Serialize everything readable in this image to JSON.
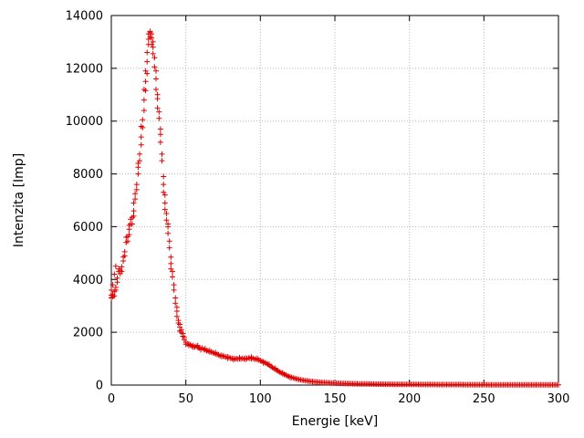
{
  "chart_data": {
    "type": "scatter",
    "title": "",
    "xlabel": "Energie [keV]",
    "ylabel": "Intenzita [Imp]",
    "xlim": [
      0,
      300
    ],
    "ylim": [
      0,
      14000
    ],
    "x_ticks": [
      0,
      50,
      100,
      150,
      200,
      250,
      300
    ],
    "y_ticks": [
      0,
      2000,
      4000,
      6000,
      8000,
      10000,
      12000,
      14000
    ],
    "grid": true,
    "legend": "none",
    "marker": "plus",
    "marker_color": "#e00000",
    "x_start": 0,
    "x_step": 1,
    "values": [
      3300,
      3450,
      3380,
      3700,
      4050,
      4300,
      4220,
      4480,
      4700,
      5050,
      5400,
      5620,
      5900,
      6280,
      6100,
      6600,
      7050,
      7600,
      8250,
      8500,
      9400,
      9750,
      10400,
      11500,
      12250,
      13300,
      13400,
      13150,
      12800,
      12400,
      11600,
      10850,
      10100,
      9500,
      8500,
      7600,
      6900,
      6250,
      6000,
      5200,
      4600,
      4100,
      3600,
      3100,
      2800,
      2450,
      2200,
      2000,
      1850,
      1720,
      1620,
      1560,
      1500,
      1530,
      1480,
      1500,
      1450,
      1470,
      1430,
      1410,
      1380,
      1400,
      1350,
      1330,
      1300,
      1290,
      1310,
      1260,
      1230,
      1210,
      1180,
      1160,
      1150,
      1110,
      1130,
      1100,
      1080,
      1060,
      1070,
      1040,
      1020,
      1005,
      1015,
      995,
      1000,
      985,
      1000,
      990,
      1010,
      1000,
      1020,
      1005,
      1030,
      1010,
      1000,
      1020,
      980,
      990,
      960,
      950,
      930,
      905,
      880,
      850,
      820,
      785,
      750,
      705,
      670,
      630,
      600,
      560,
      525,
      490,
      460,
      430,
      405,
      380,
      355,
      330,
      310,
      290,
      272,
      255,
      240,
      225,
      212,
      200,
      190,
      180,
      170,
      162,
      154,
      146,
      140,
      133,
      127,
      121,
      116,
      111,
      106,
      101,
      97,
      95,
      91,
      87,
      85,
      81,
      78,
      76,
      72,
      70,
      68,
      66,
      64,
      62,
      60,
      58,
      57,
      55,
      54,
      52,
      51,
      50,
      48,
      47,
      46,
      45,
      44,
      43,
      42,
      41,
      40,
      40,
      39,
      38,
      37,
      36,
      36,
      35,
      34,
      34,
      33,
      32,
      32,
      31,
      31,
      30,
      30,
      29,
      29,
      28,
      28,
      27,
      27,
      26,
      26,
      26,
      25,
      25,
      25,
      24,
      24,
      24,
      23,
      23,
      23,
      22,
      22,
      22,
      21,
      21,
      21,
      21,
      20,
      20,
      20,
      20,
      19,
      19,
      19,
      19,
      18,
      18,
      18,
      18,
      17,
      17,
      17,
      17,
      17,
      16,
      16,
      16,
      16,
      16,
      15,
      15,
      15,
      15,
      15,
      14,
      14,
      14,
      14,
      14,
      14,
      13,
      13,
      13,
      13,
      13,
      13,
      12,
      12,
      12,
      12,
      12,
      12,
      12,
      11,
      11,
      11,
      11,
      11,
      11,
      10,
      10,
      10,
      10,
      10,
      10,
      10,
      10,
      10,
      9,
      9,
      9,
      9,
      9,
      9,
      9,
      9,
      9,
      8,
      8,
      8,
      8,
      8,
      8,
      8,
      8,
      8,
      8,
      7,
      7,
      7,
      7,
      7,
      7,
      7
    ],
    "extra_points": [
      [
        0,
        3400
      ],
      [
        0,
        3600
      ],
      [
        1,
        3800
      ],
      [
        1,
        3350
      ],
      [
        2,
        3550
      ],
      [
        2,
        4200
      ],
      [
        3,
        3600
      ],
      [
        3,
        4500
      ],
      [
        4,
        3900
      ],
      [
        5,
        4400
      ],
      [
        6,
        4350
      ],
      [
        7,
        4300
      ],
      [
        8,
        4850
      ],
      [
        9,
        4900
      ],
      [
        10,
        5600
      ],
      [
        11,
        5450
      ],
      [
        12,
        6050
      ],
      [
        12,
        5700
      ],
      [
        13,
        6100
      ],
      [
        14,
        6350
      ],
      [
        15,
        6400
      ],
      [
        15,
        6900
      ],
      [
        16,
        7250
      ],
      [
        17,
        7400
      ],
      [
        18,
        8000
      ],
      [
        18,
        8400
      ],
      [
        19,
        8750
      ],
      [
        20,
        9100
      ],
      [
        20,
        9800
      ],
      [
        21,
        10050
      ],
      [
        22,
        10800
      ],
      [
        22,
        11200
      ],
      [
        23,
        11150
      ],
      [
        23,
        11900
      ],
      [
        24,
        12600
      ],
      [
        24,
        11800
      ],
      [
        25,
        12900
      ],
      [
        25,
        13100
      ],
      [
        26,
        13350
      ],
      [
        26,
        13200
      ],
      [
        27,
        13300
      ],
      [
        27,
        12900
      ],
      [
        28,
        12550
      ],
      [
        28,
        13000
      ],
      [
        29,
        12050
      ],
      [
        30,
        11900
      ],
      [
        30,
        11200
      ],
      [
        31,
        10500
      ],
      [
        31,
        11000
      ],
      [
        32,
        10350
      ],
      [
        33,
        9200
      ],
      [
        33,
        9700
      ],
      [
        34,
        8750
      ],
      [
        35,
        7900
      ],
      [
        35,
        7300
      ],
      [
        36,
        6650
      ],
      [
        36,
        7200
      ],
      [
        37,
        6500
      ],
      [
        38,
        5750
      ],
      [
        38,
        6100
      ],
      [
        39,
        5450
      ],
      [
        40,
        4850
      ],
      [
        40,
        4400
      ],
      [
        41,
        4300
      ],
      [
        42,
        3800
      ],
      [
        43,
        3300
      ],
      [
        44,
        2950
      ],
      [
        44,
        2600
      ],
      [
        45,
        2350
      ],
      [
        46,
        2300
      ],
      [
        46,
        2050
      ],
      [
        47,
        2100
      ],
      [
        48,
        1950
      ],
      [
        49,
        1800
      ],
      [
        50,
        1550
      ],
      [
        52,
        1560
      ],
      [
        55,
        1430
      ],
      [
        58,
        1500
      ],
      [
        60,
        1340
      ],
      [
        63,
        1380
      ],
      [
        66,
        1250
      ],
      [
        70,
        1230
      ],
      [
        74,
        1080
      ],
      [
        78,
        1010
      ],
      [
        82,
        960
      ],
      [
        86,
        1040
      ],
      [
        90,
        970
      ],
      [
        94,
        1060
      ],
      [
        98,
        1010
      ],
      [
        102,
        840
      ],
      [
        106,
        790
      ],
      [
        110,
        640
      ],
      [
        115,
        470
      ],
      [
        120,
        280
      ]
    ]
  }
}
